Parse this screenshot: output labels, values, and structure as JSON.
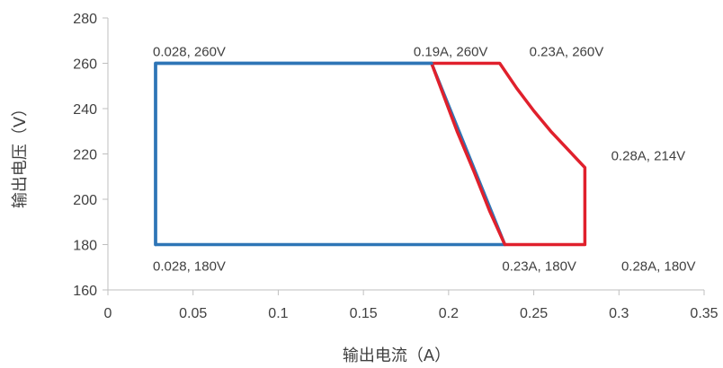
{
  "chart_data": {
    "type": "line",
    "xlabel": "输出电流（A）",
    "ylabel": "输出电压（V）",
    "xlim": [
      0,
      0.35
    ],
    "ylim": [
      160,
      280
    ],
    "x_ticks": [
      0,
      0.05,
      0.1,
      0.15,
      0.2,
      0.25,
      0.3,
      0.35
    ],
    "x_tick_labels": [
      "0",
      "0.05",
      "0.1",
      "0.15",
      "0.2",
      "0.25",
      "0.3",
      "0.35"
    ],
    "y_ticks": [
      160,
      180,
      200,
      220,
      240,
      260,
      280
    ],
    "y_tick_labels": [
      "160",
      "180",
      "200",
      "220",
      "240",
      "260",
      "280"
    ],
    "grid": false,
    "series": [
      {
        "color": "#2e75b6",
        "points": [
          [
            0.028,
            180
          ],
          [
            0.028,
            260
          ],
          [
            0.19,
            260
          ],
          [
            0.233,
            180
          ],
          [
            0.028,
            180
          ]
        ]
      },
      {
        "color": "#e0202c",
        "points": [
          [
            0.19,
            260
          ],
          [
            0.23,
            260
          ],
          [
            0.24,
            249
          ],
          [
            0.25,
            239
          ],
          [
            0.26,
            230
          ],
          [
            0.28,
            214
          ],
          [
            0.28,
            180
          ],
          [
            0.233,
            180
          ],
          [
            0.224,
            195
          ],
          [
            0.215,
            212
          ],
          [
            0.205,
            230
          ],
          [
            0.19,
            260
          ]
        ]
      }
    ],
    "annotations": [
      {
        "text": "0.028, 260V",
        "x": 0.028,
        "y": 260,
        "pos": "above"
      },
      {
        "text": "0.19A, 260V",
        "x": 0.181,
        "y": 260,
        "pos": "above"
      },
      {
        "text": "0.23A, 260V",
        "x": 0.249,
        "y": 260,
        "pos": "above"
      },
      {
        "text": "0.28A, 214V",
        "x": 0.297,
        "y": 214,
        "pos": "above"
      },
      {
        "text": "0.028, 180V",
        "x": 0.028,
        "y": 180,
        "pos": "below"
      },
      {
        "text": "0.23A, 180V",
        "x": 0.233,
        "y": 180,
        "pos": "below"
      },
      {
        "text": "0.28A, 180V",
        "x": 0.303,
        "y": 180,
        "pos": "below"
      }
    ]
  }
}
